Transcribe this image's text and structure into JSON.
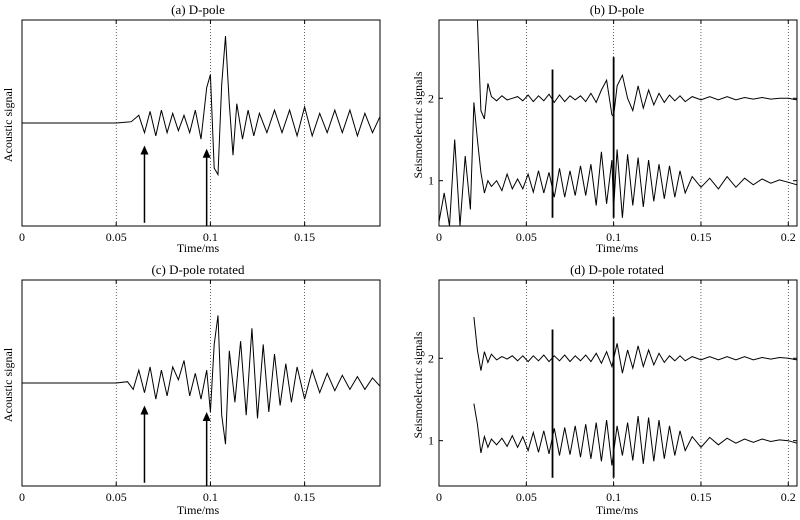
{
  "chart_data": [
    {
      "type": "line",
      "title": "(a) D-pole",
      "xlabel": "Time/ms",
      "ylabel": "Acoustic signal",
      "xlim": [
        0,
        0.19
      ],
      "ylim": [
        -1.6,
        1.6
      ],
      "x_ticks": [
        0,
        0.05,
        0.1,
        0.15
      ],
      "x_tick_labels": [
        "0",
        "0.05",
        "0.1",
        "0.15"
      ],
      "y_ticks": [],
      "grid": "dotted vertical lines at x ticks",
      "series": [
        {
          "x": [
            0,
            0.05,
            0.058,
            0.062,
            0.065,
            0.068,
            0.071,
            0.074,
            0.077,
            0.08,
            0.083,
            0.086,
            0.089,
            0.092,
            0.095,
            0.098,
            0.1,
            0.102,
            0.104,
            0.106,
            0.108,
            0.11,
            0.112,
            0.114,
            0.117,
            0.12,
            0.123,
            0.126,
            0.13,
            0.134,
            0.138,
            0.142,
            0.146,
            0.15,
            0.154,
            0.158,
            0.162,
            0.166,
            0.17,
            0.174,
            0.178,
            0.182,
            0.186,
            0.19
          ],
          "y": [
            0,
            0,
            0.02,
            0.12,
            -0.15,
            0.18,
            -0.2,
            0.2,
            -0.15,
            0.15,
            -0.12,
            0.12,
            -0.15,
            0.2,
            -0.25,
            0.55,
            0.75,
            -0.7,
            -0.8,
            0.6,
            1.35,
            0.3,
            -0.5,
            0.3,
            -0.25,
            0.2,
            -0.2,
            0.15,
            -0.15,
            0.2,
            -0.15,
            0.2,
            -0.2,
            0.25,
            -0.2,
            0.15,
            -0.15,
            0.2,
            -0.15,
            0.2,
            -0.2,
            0.15,
            -0.15,
            0.1
          ]
        }
      ],
      "annotations": [
        {
          "type": "arrow",
          "x": 0.065,
          "y_from": -1.55,
          "y_to": -0.35
        },
        {
          "type": "arrow",
          "x": 0.098,
          "y_from": -1.7,
          "y_to": -0.4
        }
      ]
    },
    {
      "type": "line",
      "title": "(b) D-pole",
      "xlabel": "Time/ms",
      "ylabel": "Seismoelectric signals",
      "xlim": [
        0,
        0.205
      ],
      "ylim": [
        0.45,
        2.95
      ],
      "x_ticks": [
        0,
        0.05,
        0.1,
        0.15,
        0.2
      ],
      "x_tick_labels": [
        "0",
        "0.05",
        "0.1",
        "0.15",
        "0.2"
      ],
      "y_ticks": [
        1,
        2
      ],
      "y_tick_labels": [
        "1",
        "2"
      ],
      "grid": "dotted vertical lines at x ticks",
      "series": [
        {
          "name": "2",
          "x": [
            0.002,
            0.004,
            0.006,
            0.008,
            0.01,
            0.012,
            0.014,
            0.016,
            0.018,
            0.02,
            0.022,
            0.024,
            0.026,
            0.028,
            0.03,
            0.033,
            0.036,
            0.039,
            0.042,
            0.045,
            0.048,
            0.051,
            0.054,
            0.057,
            0.06,
            0.063,
            0.066,
            0.069,
            0.072,
            0.075,
            0.078,
            0.081,
            0.084,
            0.087,
            0.09,
            0.093,
            0.096,
            0.099,
            0.1,
            0.102,
            0.105,
            0.108,
            0.111,
            0.114,
            0.117,
            0.12,
            0.123,
            0.126,
            0.129,
            0.132,
            0.135,
            0.138,
            0.141,
            0.145,
            0.15,
            0.155,
            0.16,
            0.165,
            0.17,
            0.175,
            0.18,
            0.185,
            0.19,
            0.195,
            0.2,
            0.205
          ],
          "y": [
            2.95,
            2.95,
            2.95,
            2.95,
            2.95,
            2.95,
            2.95,
            2.95,
            2.95,
            2.95,
            2.95,
            1.85,
            1.75,
            2.18,
            2.02,
            1.97,
            2.03,
            1.98,
            2.0,
            2.02,
            1.97,
            2.04,
            1.96,
            2.03,
            1.97,
            2.05,
            1.95,
            2.04,
            1.96,
            2.03,
            1.98,
            2.03,
            1.96,
            2.06,
            1.95,
            2.1,
            2.22,
            1.8,
            1.78,
            2.15,
            2.28,
            2.0,
            1.85,
            2.15,
            1.88,
            2.1,
            1.92,
            2.06,
            1.95,
            2.04,
            1.97,
            2.03,
            1.96,
            2.02,
            1.98,
            2.02,
            1.98,
            2.02,
            1.98,
            2.01,
            1.99,
            2.01,
            1.99,
            2.0,
            2.0,
            1.98
          ]
        },
        {
          "name": "1",
          "x": [
            0.0,
            0.003,
            0.006,
            0.009,
            0.012,
            0.015,
            0.018,
            0.02,
            0.022,
            0.024,
            0.026,
            0.028,
            0.03,
            0.033,
            0.036,
            0.039,
            0.042,
            0.045,
            0.048,
            0.051,
            0.054,
            0.057,
            0.06,
            0.063,
            0.066,
            0.069,
            0.072,
            0.075,
            0.078,
            0.081,
            0.084,
            0.087,
            0.09,
            0.093,
            0.096,
            0.099,
            0.1,
            0.102,
            0.105,
            0.108,
            0.111,
            0.114,
            0.117,
            0.12,
            0.123,
            0.126,
            0.129,
            0.132,
            0.135,
            0.138,
            0.141,
            0.145,
            0.15,
            0.155,
            0.16,
            0.165,
            0.17,
            0.175,
            0.18,
            0.185,
            0.19,
            0.195,
            0.2,
            0.205
          ],
          "y": [
            0.5,
            0.85,
            0.45,
            1.5,
            0.45,
            1.3,
            0.65,
            1.95,
            1.5,
            1.1,
            0.85,
            1.0,
            0.93,
            1.0,
            0.88,
            1.08,
            0.9,
            1.02,
            0.9,
            1.08,
            0.86,
            1.12,
            0.85,
            1.1,
            0.8,
            1.15,
            0.8,
            1.12,
            0.82,
            1.18,
            0.82,
            1.2,
            0.7,
            1.35,
            0.72,
            1.25,
            0.65,
            1.38,
            0.55,
            1.32,
            0.7,
            1.28,
            0.68,
            1.25,
            0.75,
            1.2,
            0.78,
            1.18,
            0.8,
            1.12,
            0.85,
            1.05,
            0.92,
            1.03,
            0.9,
            1.05,
            0.92,
            1.03,
            0.95,
            1.02,
            0.97,
            1.01,
            0.98,
            0.95
          ]
        }
      ],
      "annotations": [
        {
          "type": "vline",
          "x": 0.065,
          "y_from": 0.55,
          "y_to": 2.35
        },
        {
          "type": "vline",
          "x": 0.1,
          "y_from": 0.55,
          "y_to": 2.5
        }
      ]
    },
    {
      "type": "line",
      "title": "(c) D-pole rotated",
      "xlabel": "Time/ms",
      "ylabel": "Acoustic signal",
      "xlim": [
        0,
        0.19
      ],
      "ylim": [
        -1.6,
        1.6
      ],
      "x_ticks": [
        0,
        0.05,
        0.1,
        0.15
      ],
      "x_tick_labels": [
        "0",
        "0.05",
        "0.1",
        "0.15"
      ],
      "y_ticks": [],
      "grid": "dotted vertical lines at x ticks",
      "series": [
        {
          "x": [
            0,
            0.05,
            0.056,
            0.059,
            0.062,
            0.065,
            0.068,
            0.071,
            0.074,
            0.077,
            0.08,
            0.083,
            0.086,
            0.089,
            0.092,
            0.095,
            0.098,
            0.1,
            0.102,
            0.104,
            0.106,
            0.108,
            0.11,
            0.113,
            0.116,
            0.119,
            0.122,
            0.125,
            0.128,
            0.131,
            0.134,
            0.137,
            0.14,
            0.143,
            0.146,
            0.15,
            0.154,
            0.158,
            0.162,
            0.166,
            0.17,
            0.174,
            0.178,
            0.182,
            0.186,
            0.19
          ],
          "y": [
            0,
            0,
            0.02,
            -0.1,
            0.2,
            -0.15,
            0.25,
            -0.25,
            0.2,
            -0.2,
            0.25,
            0.05,
            0.35,
            -0.2,
            0.15,
            -0.25,
            0.2,
            -0.45,
            0.6,
            1.05,
            -0.5,
            -0.95,
            0.5,
            -0.3,
            0.65,
            -0.5,
            0.85,
            -0.55,
            0.6,
            -0.45,
            0.45,
            -0.35,
            0.3,
            -0.3,
            0.25,
            -0.25,
            0.2,
            -0.15,
            0.15,
            -0.12,
            0.12,
            -0.1,
            0.1,
            -0.1,
            0.08,
            -0.05
          ]
        }
      ],
      "annotations": [
        {
          "type": "arrow",
          "x": 0.065,
          "y_from": -1.55,
          "y_to": -0.35
        },
        {
          "type": "arrow",
          "x": 0.098,
          "y_from": -1.7,
          "y_to": -0.45
        }
      ]
    },
    {
      "type": "line",
      "title": "(d) D-pole rotated",
      "xlabel": "Time/ms",
      "ylabel": "Seismoelectric signals",
      "xlim": [
        0,
        0.205
      ],
      "ylim": [
        0.45,
        2.95
      ],
      "x_ticks": [
        0,
        0.05,
        0.1,
        0.15,
        0.2
      ],
      "x_tick_labels": [
        "0",
        "0.05",
        "0.1",
        "0.15",
        "0.2"
      ],
      "y_ticks": [
        1,
        2
      ],
      "y_tick_labels": [
        "1",
        "2"
      ],
      "grid": "dotted vertical lines at x ticks",
      "series": [
        {
          "name": "2",
          "x": [
            0.02,
            0.022,
            0.024,
            0.026,
            0.028,
            0.03,
            0.033,
            0.036,
            0.039,
            0.042,
            0.045,
            0.048,
            0.051,
            0.054,
            0.057,
            0.06,
            0.063,
            0.066,
            0.069,
            0.072,
            0.075,
            0.078,
            0.081,
            0.084,
            0.087,
            0.09,
            0.093,
            0.096,
            0.099,
            0.102,
            0.105,
            0.108,
            0.111,
            0.114,
            0.117,
            0.12,
            0.123,
            0.126,
            0.129,
            0.132,
            0.135,
            0.138,
            0.141,
            0.145,
            0.15,
            0.155,
            0.16,
            0.165,
            0.17,
            0.175,
            0.18,
            0.185,
            0.19,
            0.195,
            0.2,
            0.205
          ],
          "y": [
            2.5,
            2.1,
            1.85,
            2.08,
            1.95,
            2.05,
            1.98,
            2.02,
            1.99,
            2.03,
            1.97,
            2.03,
            1.96,
            2.03,
            1.97,
            2.04,
            1.96,
            2.03,
            1.97,
            2.04,
            1.96,
            2.03,
            1.97,
            2.04,
            1.96,
            2.06,
            1.94,
            2.08,
            1.9,
            2.18,
            1.82,
            2.1,
            1.88,
            2.15,
            1.9,
            2.1,
            1.92,
            2.06,
            1.95,
            2.03,
            1.97,
            2.03,
            1.97,
            2.02,
            1.98,
            2.02,
            1.98,
            2.02,
            1.98,
            2.02,
            1.98,
            2.01,
            1.99,
            2.01,
            2.0,
            1.98
          ]
        },
        {
          "name": "1",
          "x": [
            0.02,
            0.022,
            0.024,
            0.026,
            0.028,
            0.03,
            0.033,
            0.036,
            0.039,
            0.042,
            0.045,
            0.048,
            0.051,
            0.054,
            0.057,
            0.06,
            0.063,
            0.066,
            0.069,
            0.072,
            0.075,
            0.078,
            0.081,
            0.084,
            0.087,
            0.09,
            0.093,
            0.096,
            0.099,
            0.102,
            0.105,
            0.108,
            0.111,
            0.114,
            0.117,
            0.12,
            0.123,
            0.126,
            0.129,
            0.132,
            0.135,
            0.138,
            0.141,
            0.145,
            0.15,
            0.155,
            0.16,
            0.165,
            0.17,
            0.175,
            0.18,
            0.185,
            0.19,
            0.195,
            0.2,
            0.205
          ],
          "y": [
            1.45,
            1.2,
            0.85,
            1.05,
            0.92,
            1.02,
            0.95,
            1.03,
            0.93,
            1.06,
            0.92,
            1.05,
            0.88,
            1.1,
            0.86,
            1.12,
            0.84,
            1.15,
            0.82,
            1.16,
            0.83,
            1.18,
            0.8,
            1.2,
            0.78,
            1.22,
            0.75,
            1.25,
            0.7,
            1.18,
            0.82,
            1.22,
            0.76,
            1.3,
            0.72,
            1.28,
            0.75,
            1.25,
            0.78,
            1.18,
            0.82,
            1.12,
            0.88,
            1.05,
            0.92,
            1.04,
            0.95,
            1.03,
            0.97,
            1.02,
            0.98,
            1.02,
            0.99,
            1.01,
            1.0,
            0.97
          ]
        }
      ],
      "annotations": [
        {
          "type": "vline",
          "x": 0.065,
          "y_from": 0.55,
          "y_to": 2.35
        },
        {
          "type": "vline",
          "x": 0.1,
          "y_from": 0.55,
          "y_to": 2.5
        }
      ]
    }
  ]
}
